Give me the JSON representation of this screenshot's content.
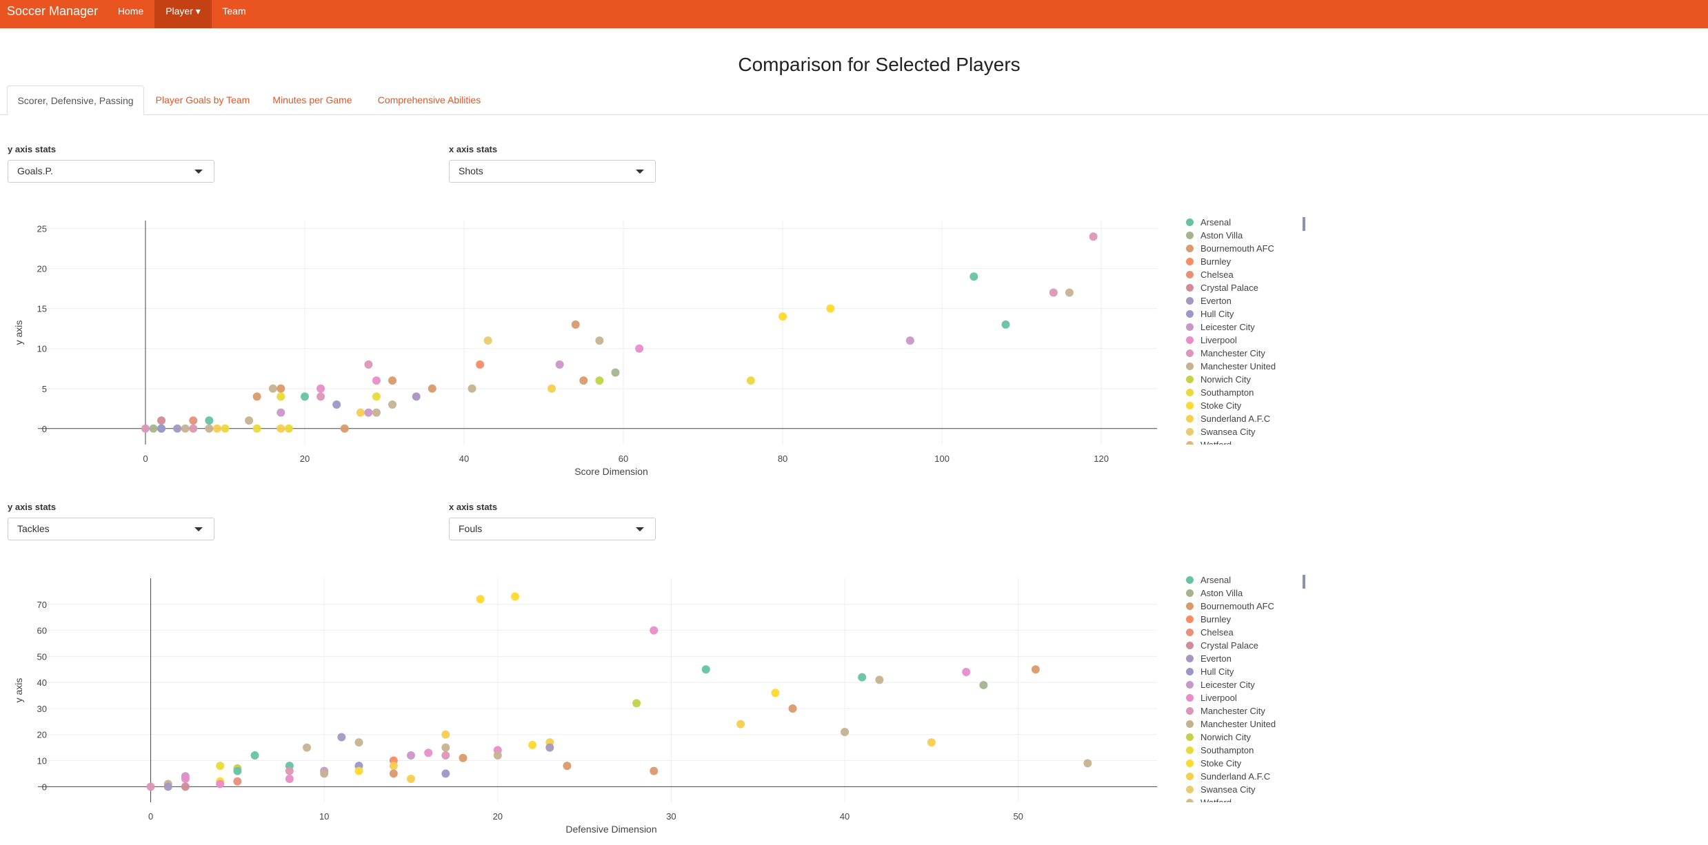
{
  "nav": {
    "brand": "Soccer Manager",
    "items": [
      {
        "label": "Home"
      },
      {
        "label": "Player ▾"
      },
      {
        "label": "Team"
      }
    ]
  },
  "page": {
    "title": "Comparison for Selected Players"
  },
  "tabs": [
    {
      "label": "Scorer, Defensive, Passing"
    },
    {
      "label": "Player Goals by Team"
    },
    {
      "label": "Minutes per Game"
    },
    {
      "label": "Comprehensive Abilities"
    }
  ],
  "legend_labels": [
    "Arsenal",
    "Aston Villa",
    "Bournemouth AFC",
    "Burnley",
    "Chelsea",
    "Crystal Palace",
    "Everton",
    "Hull City",
    "Leicester City",
    "Liverpool",
    "Manchester City",
    "Manchester United",
    "Norwich City",
    "Southampton",
    "Stoke City",
    "Sunderland A.F.C",
    "Swansea City",
    "Watford"
  ],
  "team_colors": [
    "#66c2a5",
    "#a4b58d",
    "#d99a6c",
    "#f98c63",
    "#e69178",
    "#cf8c96",
    "#a498c0",
    "#9c97c9",
    "#c897c9",
    "#e88dc9",
    "#dc97b7",
    "#c5b390",
    "#c4d249",
    "#ead93a",
    "#ffd92f",
    "#f4cf50",
    "#eacb6f",
    "#ddb683"
  ],
  "charts": [
    {
      "y_control": {
        "label": "y axis stats",
        "value": "Goals.P."
      },
      "x_control": {
        "label": "x axis stats",
        "value": "Shots"
      },
      "x_title": "Score Dimension",
      "y_title": "y axis",
      "x_range": [
        -13.5,
        127
      ],
      "y_range": [
        -2,
        26
      ],
      "x_ticks": [
        0,
        20,
        40,
        60,
        80,
        100,
        120
      ],
      "y_ticks": [
        0,
        5,
        10,
        15,
        20,
        25
      ],
      "points": [
        [
          0,
          0,
          10
        ],
        [
          1,
          0,
          1
        ],
        [
          2,
          0,
          0
        ],
        [
          2,
          1,
          5
        ],
        [
          2,
          0,
          7
        ],
        [
          4,
          0,
          6
        ],
        [
          5,
          0,
          11
        ],
        [
          6,
          1,
          4
        ],
        [
          6,
          0,
          10
        ],
        [
          8,
          1,
          0
        ],
        [
          8,
          0,
          11
        ],
        [
          9,
          0,
          15
        ],
        [
          10,
          0,
          13
        ],
        [
          13,
          1,
          11
        ],
        [
          14,
          4,
          2
        ],
        [
          14,
          0,
          13
        ],
        [
          16,
          5,
          11
        ],
        [
          17,
          5,
          2
        ],
        [
          17,
          2,
          8
        ],
        [
          17,
          0,
          15
        ],
        [
          17,
          4,
          13
        ],
        [
          18,
          0,
          13
        ],
        [
          20,
          4,
          0
        ],
        [
          22,
          5,
          9
        ],
        [
          22,
          4,
          10
        ],
        [
          24,
          3,
          7
        ],
        [
          25,
          0,
          2
        ],
        [
          27,
          2,
          15
        ],
        [
          28,
          8,
          10
        ],
        [
          28,
          2,
          8
        ],
        [
          29,
          6,
          9
        ],
        [
          29,
          2,
          11
        ],
        [
          29,
          4,
          13
        ],
        [
          31,
          6,
          2
        ],
        [
          31,
          3,
          11
        ],
        [
          34,
          4,
          6
        ],
        [
          36,
          5,
          2
        ],
        [
          41,
          5,
          11
        ],
        [
          42,
          8,
          3
        ],
        [
          43,
          11,
          16
        ],
        [
          51,
          5,
          15
        ],
        [
          52,
          8,
          8
        ],
        [
          54,
          13,
          2
        ],
        [
          55,
          6,
          2
        ],
        [
          57,
          11,
          11
        ],
        [
          57,
          6,
          12
        ],
        [
          59,
          7,
          1
        ],
        [
          62,
          10,
          9
        ],
        [
          76,
          6,
          13
        ],
        [
          80,
          14,
          14
        ],
        [
          86,
          15,
          14
        ],
        [
          96,
          11,
          8
        ],
        [
          104,
          19,
          0
        ],
        [
          108,
          13,
          0
        ],
        [
          114,
          17,
          10
        ],
        [
          116,
          17,
          11
        ],
        [
          119,
          24,
          10
        ]
      ]
    },
    {
      "y_control": {
        "label": "y axis stats",
        "value": "Tackles"
      },
      "x_control": {
        "label": "x axis stats",
        "value": "Fouls"
      },
      "x_title": "Defensive Dimension",
      "y_title": "y axis",
      "x_range": [
        -6.5,
        58
      ],
      "y_range": [
        -6,
        80
      ],
      "x_ticks": [
        0,
        10,
        20,
        30,
        40,
        50
      ],
      "y_ticks": [
        0,
        10,
        20,
        30,
        40,
        50,
        60,
        70
      ],
      "points": [
        [
          0,
          0,
          10
        ],
        [
          1,
          1,
          11
        ],
        [
          1,
          0,
          6
        ],
        [
          2,
          4,
          8
        ],
        [
          2,
          3,
          9
        ],
        [
          2,
          0,
          5
        ],
        [
          4,
          8,
          13
        ],
        [
          4,
          2,
          14
        ],
        [
          4,
          1,
          9
        ],
        [
          5,
          7,
          12
        ],
        [
          5,
          6,
          0
        ],
        [
          5,
          2,
          4
        ],
        [
          6,
          12,
          0
        ],
        [
          8,
          8,
          0
        ],
        [
          8,
          6,
          10
        ],
        [
          8,
          3,
          9
        ],
        [
          9,
          15,
          11
        ],
        [
          10,
          6,
          8
        ],
        [
          10,
          5,
          11
        ],
        [
          11,
          19,
          6
        ],
        [
          12,
          17,
          11
        ],
        [
          12,
          8,
          7
        ],
        [
          12,
          6,
          14
        ],
        [
          14,
          10,
          3
        ],
        [
          14,
          8,
          15
        ],
        [
          14,
          5,
          2
        ],
        [
          15,
          12,
          8
        ],
        [
          15,
          3,
          15
        ],
        [
          16,
          13,
          9
        ],
        [
          17,
          20,
          15
        ],
        [
          17,
          15,
          11
        ],
        [
          17,
          12,
          10
        ],
        [
          17,
          5,
          7
        ],
        [
          18,
          11,
          2
        ],
        [
          19,
          72,
          14
        ],
        [
          20,
          14,
          9
        ],
        [
          20,
          12,
          11
        ],
        [
          21,
          73,
          14
        ],
        [
          22,
          16,
          14
        ],
        [
          23,
          17,
          15
        ],
        [
          23,
          15,
          6
        ],
        [
          24,
          8,
          2
        ],
        [
          28,
          32,
          12
        ],
        [
          29,
          6,
          2
        ],
        [
          29,
          60,
          9
        ],
        [
          32,
          45,
          0
        ],
        [
          34,
          24,
          15
        ],
        [
          36,
          36,
          14
        ],
        [
          37,
          30,
          2
        ],
        [
          40,
          21,
          11
        ],
        [
          41,
          42,
          0
        ],
        [
          42,
          41,
          11
        ],
        [
          45,
          17,
          15
        ],
        [
          47,
          44,
          9
        ],
        [
          48,
          39,
          1
        ],
        [
          51,
          45,
          2
        ],
        [
          54,
          9,
          11
        ]
      ]
    }
  ]
}
